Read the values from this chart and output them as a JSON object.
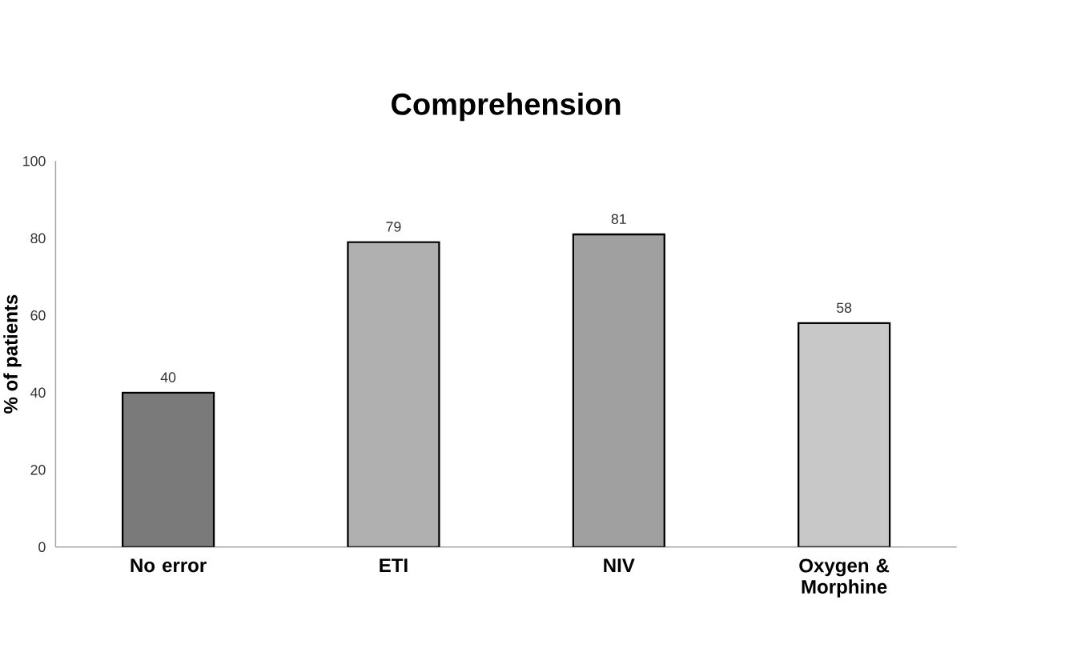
{
  "chart_data": {
    "type": "bar",
    "title": "Comprehension",
    "ylabel": "% of patients",
    "categories": [
      "No error",
      "ETI",
      "NIV",
      "Oxygen & Morphine"
    ],
    "values": [
      40,
      79,
      81,
      58
    ],
    "colors": [
      "#7a7a7a",
      "#b0b0b0",
      "#a0a0a0",
      "#c8c8c8"
    ],
    "ylim": [
      0,
      100
    ],
    "yticks": [
      0,
      20,
      40,
      60,
      80,
      100
    ],
    "data_labels": true
  }
}
